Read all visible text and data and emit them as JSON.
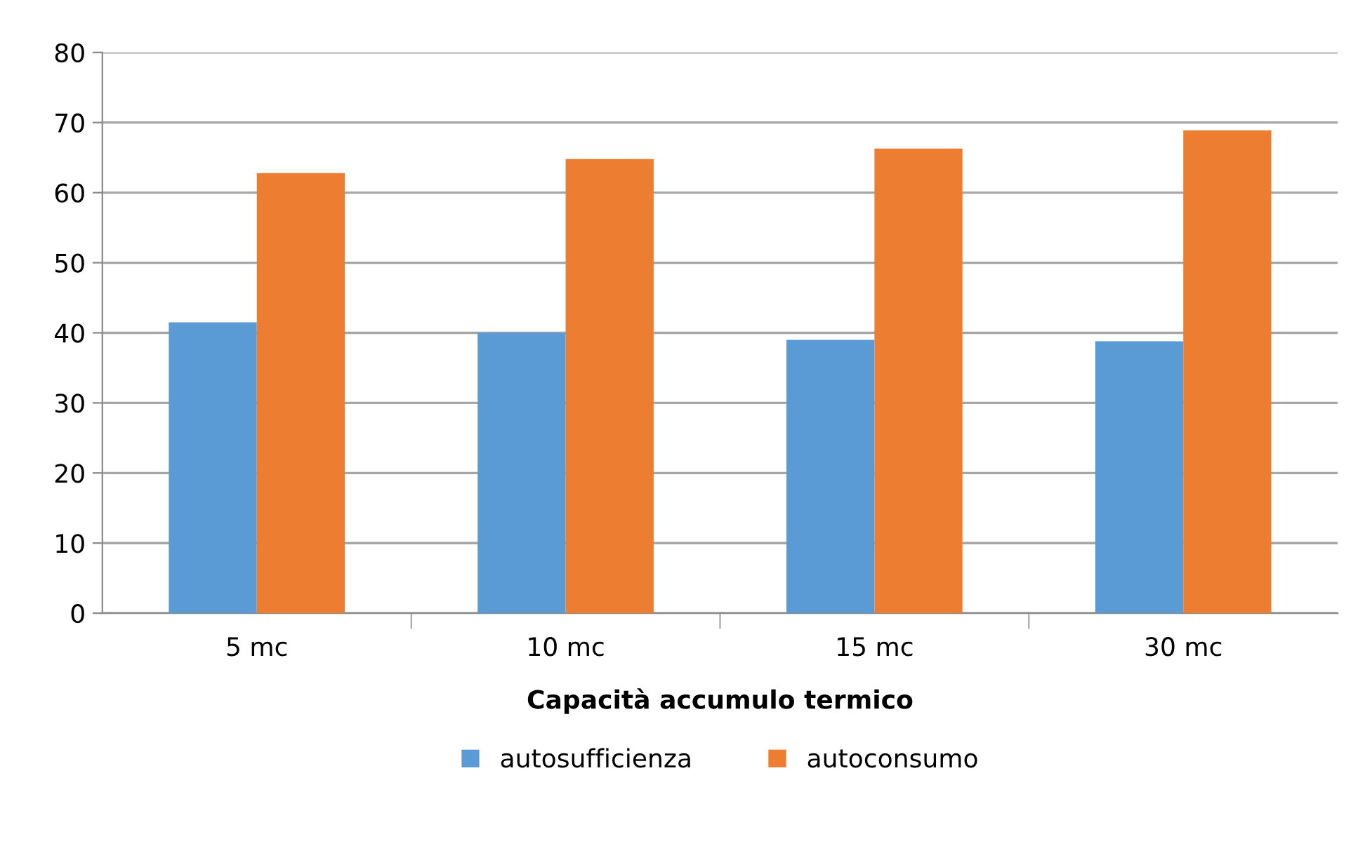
{
  "chart_data": {
    "type": "bar",
    "xlabel": "Capacità accumulo termico",
    "categories": [
      "5 mc",
      "10 mc",
      "15 mc",
      "30 mc"
    ],
    "series": [
      {
        "name": "autosufficienza",
        "color": "#5b9bd5",
        "values": [
          41.5,
          40.0,
          39.0,
          38.8
        ]
      },
      {
        "name": "autoconsumo",
        "color": "#ed7d31",
        "values": [
          62.8,
          64.8,
          66.3,
          68.9
        ]
      }
    ],
    "ylim": [
      0,
      80
    ],
    "yticks": [
      0,
      10,
      20,
      30,
      40,
      50,
      60,
      70,
      80
    ],
    "grid": "y",
    "legend": "bottom"
  }
}
